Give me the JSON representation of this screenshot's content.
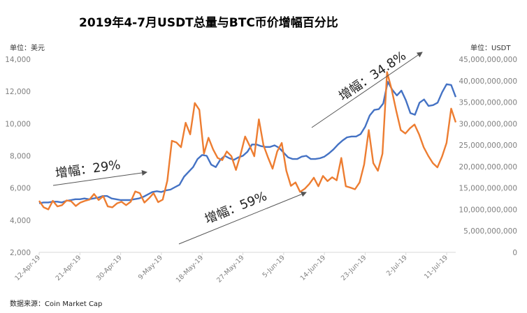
{
  "chart_data": {
    "type": "line",
    "title": "2019年4-7月USDT总量与BTC币价增幅百分比",
    "left_unit": "单位：美元",
    "right_unit": "单位：USDT",
    "source": "数据来源：Coin Market Cap",
    "y_left": {
      "min": 2000,
      "max": 14000,
      "step": 2000,
      "ticks": [
        "2,000",
        "4,000",
        "6,000",
        "8,000",
        "10,000",
        "12,000",
        "14,000"
      ]
    },
    "y_right": {
      "min": 0,
      "max": 45000000000,
      "step": 5000000000,
      "ticks": [
        "0",
        "5,000,000,000",
        "10,000,000,000",
        "15,000,000,000",
        "20,000,000,000",
        "25,000,000,000",
        "30,000,000,000",
        "35,000,000,000",
        "40,000,000,000",
        "45,000,000,000"
      ]
    },
    "x_tick_labels": [
      "12-Apr-19",
      "21-Apr-19",
      "30-Apr-19",
      "9-May-19",
      "18-May-19",
      "27-May-19",
      "5-Jun-19",
      "14-Jun-19",
      "23-Jun-19",
      "2-Jul-19",
      "11-Jul-19"
    ],
    "x_tick_index": [
      0,
      9,
      18,
      27,
      36,
      45,
      54,
      63,
      72,
      81,
      90
    ],
    "series": [
      {
        "axis": "left",
        "color": "#4472c4",
        "values": [
          5050,
          5100,
          5100,
          5150,
          5150,
          5100,
          5200,
          5250,
          5300,
          5300,
          5350,
          5300,
          5350,
          5400,
          5500,
          5500,
          5350,
          5300,
          5250,
          5250,
          5250,
          5300,
          5350,
          5450,
          5600,
          5750,
          5800,
          5750,
          5850,
          5900,
          6050,
          6200,
          6700,
          7000,
          7300,
          7800,
          8050,
          8000,
          7450,
          7300,
          7750,
          8000,
          7850,
          7750,
          7900,
          8000,
          8250,
          8700,
          8700,
          8600,
          8550,
          8550,
          8650,
          8500,
          8200,
          7900,
          7800,
          7800,
          7950,
          8000,
          7800,
          7800,
          7850,
          7950,
          8150,
          8400,
          8700,
          8950,
          9150,
          9200,
          9200,
          9350,
          9800,
          10500,
          10850,
          10900,
          11250,
          12600,
          12100,
          11750,
          12050,
          11450,
          10650,
          10550,
          11300,
          11500,
          11100,
          11150,
          11300,
          11950,
          12450,
          12400,
          11650
        ]
      },
      {
        "axis": "right",
        "color": "#ed7d31",
        "values": [
          12000000000,
          10500000000,
          10000000000,
          12000000000,
          10700000000,
          11000000000,
          12100000000,
          11900000000,
          10800000000,
          11600000000,
          12000000000,
          12300000000,
          13600000000,
          12200000000,
          13100000000,
          10700000000,
          10500000000,
          11400000000,
          11800000000,
          11000000000,
          11800000000,
          14200000000,
          13800000000,
          11600000000,
          12600000000,
          13800000000,
          11700000000,
          12300000000,
          16700000000,
          26000000000,
          25600000000,
          24500000000,
          30200000000,
          27500000000,
          34800000000,
          33200000000,
          23000000000,
          26700000000,
          24000000000,
          22000000000,
          21500000000,
          23500000000,
          22400000000,
          19200000000,
          22800000000,
          27000000000,
          24800000000,
          22400000000,
          31000000000,
          25000000000,
          22100000000,
          19500000000,
          23500000000,
          25500000000,
          19000000000,
          15500000000,
          16300000000,
          14100000000,
          14800000000,
          15900000000,
          17400000000,
          15400000000,
          17800000000,
          16600000000,
          17500000000,
          16800000000,
          22000000000,
          15400000000,
          15100000000,
          14700000000,
          16300000000,
          20500000000,
          28500000000,
          20800000000,
          19000000000,
          23000000000,
          42000000000,
          38000000000,
          33000000000,
          28500000000,
          27700000000,
          28900000000,
          29800000000,
          27500000000,
          24500000000,
          22500000000,
          20800000000,
          19800000000,
          22300000000,
          25500000000,
          33500000000,
          30300000000
        ]
      }
    ],
    "annotations": [
      {
        "text": "增幅：29%"
      },
      {
        "text": "增幅：59%"
      },
      {
        "text": "增幅：34.8%"
      }
    ],
    "grid": false,
    "legend": "none"
  }
}
